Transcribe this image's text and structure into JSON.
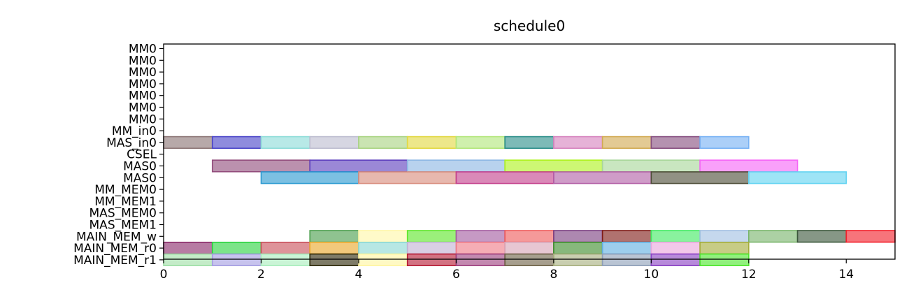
{
  "chart_data": {
    "type": "gantt",
    "title": "schedule0",
    "xlabel": "",
    "ylabel": "",
    "xlim": [
      0,
      15
    ],
    "xticks": [
      0,
      2,
      4,
      6,
      8,
      10,
      12,
      14
    ],
    "rows": [
      "MM0",
      "MM0",
      "MM0",
      "MM0",
      "MM0",
      "MM0",
      "MM0",
      "MM_in0",
      "MAS_in0",
      "CSEL",
      "MAS0",
      "MAS0",
      "MM_MEM0",
      "MM_MEM1",
      "MAS_MEM0",
      "MAS_MEM1",
      "MAIN_MEM_w",
      "MAIN_MEM_r0",
      "MAIN_MEM_r1"
    ],
    "tasks": [
      {
        "row": 8,
        "start": 0,
        "end": 1,
        "color": "#8b7575"
      },
      {
        "row": 8,
        "start": 1,
        "end": 2,
        "color": "#4b45c8"
      },
      {
        "row": 8,
        "start": 2,
        "end": 3,
        "color": "#8ddcd8"
      },
      {
        "row": 8,
        "start": 3,
        "end": 4,
        "color": "#bdbdd0"
      },
      {
        "row": 8,
        "start": 4,
        "end": 5,
        "color": "#a9d482"
      },
      {
        "row": 8,
        "start": 5,
        "end": 6,
        "color": "#e2d842"
      },
      {
        "row": 8,
        "start": 6,
        "end": 7,
        "color": "#b2e67a"
      },
      {
        "row": 8,
        "start": 7,
        "end": 8,
        "color": "#2d8f8a"
      },
      {
        "row": 8,
        "start": 8,
        "end": 9,
        "color": "#d683be"
      },
      {
        "row": 8,
        "start": 9,
        "end": 10,
        "color": "#d2aa52"
      },
      {
        "row": 8,
        "start": 10,
        "end": 11,
        "color": "#874f80"
      },
      {
        "row": 8,
        "start": 11,
        "end": 12,
        "color": "#78b2f4"
      },
      {
        "row": 10,
        "start": 1,
        "end": 3,
        "color": "#924d7c"
      },
      {
        "row": 10,
        "start": 3,
        "end": 5,
        "color": "#5e3fbd"
      },
      {
        "row": 10,
        "start": 5,
        "end": 7,
        "color": "#8db7e4"
      },
      {
        "row": 10,
        "start": 7,
        "end": 9,
        "color": "#aef21e"
      },
      {
        "row": 10,
        "start": 9,
        "end": 11,
        "color": "#a8d69a"
      },
      {
        "row": 10,
        "start": 11,
        "end": 13,
        "color": "#f665f7"
      },
      {
        "row": 11,
        "start": 2,
        "end": 4,
        "color": "#2b9ad1"
      },
      {
        "row": 11,
        "start": 4,
        "end": 6,
        "color": "#d88d7d"
      },
      {
        "row": 11,
        "start": 6,
        "end": 8,
        "color": "#c4408d"
      },
      {
        "row": 11,
        "start": 8,
        "end": 10,
        "color": "#b25fa6"
      },
      {
        "row": 11,
        "start": 10,
        "end": 12,
        "color": "#4d4d38"
      },
      {
        "row": 11,
        "start": 12,
        "end": 14,
        "color": "#62d3f1"
      },
      {
        "row": 16,
        "start": 3,
        "end": 4,
        "color": "#4a9e4c"
      },
      {
        "row": 16,
        "start": 4,
        "end": 5,
        "color": "#fff7a8"
      },
      {
        "row": 16,
        "start": 5,
        "end": 6,
        "color": "#5ee62a"
      },
      {
        "row": 16,
        "start": 6,
        "end": 7,
        "color": "#a35ba0"
      },
      {
        "row": 16,
        "start": 7,
        "end": 8,
        "color": "#ef5b5b"
      },
      {
        "row": 16,
        "start": 8,
        "end": 9,
        "color": "#7a3f80"
      },
      {
        "row": 16,
        "start": 9,
        "end": 10,
        "color": "#7f1b16"
      },
      {
        "row": 16,
        "start": 10,
        "end": 11,
        "color": "#41ea63"
      },
      {
        "row": 16,
        "start": 11,
        "end": 12,
        "color": "#a2c0e2"
      },
      {
        "row": 16,
        "start": 12,
        "end": 13,
        "color": "#79b56c"
      },
      {
        "row": 16,
        "start": 13,
        "end": 14,
        "color": "#3b573b"
      },
      {
        "row": 16,
        "start": 14,
        "end": 15,
        "color": "#f21f2a"
      },
      {
        "row": 17,
        "start": 0,
        "end": 1,
        "color": "#8a2a6a"
      },
      {
        "row": 17,
        "start": 1,
        "end": 2,
        "color": "#2bd340"
      },
      {
        "row": 17,
        "start": 2,
        "end": 3,
        "color": "#c9515b"
      },
      {
        "row": 17,
        "start": 3,
        "end": 4,
        "color": "#eaa82a"
      },
      {
        "row": 17,
        "start": 4,
        "end": 5,
        "color": "#8ad9d3"
      },
      {
        "row": 17,
        "start": 5,
        "end": 6,
        "color": "#c1b2d3"
      },
      {
        "row": 17,
        "start": 6,
        "end": 7,
        "color": "#ef7b87"
      },
      {
        "row": 17,
        "start": 7,
        "end": 8,
        "color": "#d8a5b7"
      },
      {
        "row": 17,
        "start": 8,
        "end": 9,
        "color": "#3d8c2c"
      },
      {
        "row": 17,
        "start": 9,
        "end": 10,
        "color": "#61b0e2"
      },
      {
        "row": 17,
        "start": 10,
        "end": 11,
        "color": "#eaa6dd"
      },
      {
        "row": 17,
        "start": 11,
        "end": 12,
        "color": "#a4ad3a"
      },
      {
        "row": 18,
        "start": 0,
        "end": 1,
        "color": "#9fdfa7"
      },
      {
        "row": 18,
        "start": 1,
        "end": 2,
        "color": "#a59ee2"
      },
      {
        "row": 18,
        "start": 2,
        "end": 3,
        "color": "#a9edbd"
      },
      {
        "row": 18,
        "start": 3,
        "end": 4,
        "color": "#2f2a0a"
      },
      {
        "row": 18,
        "start": 4,
        "end": 5,
        "color": "#fff5a0"
      },
      {
        "row": 18,
        "start": 5,
        "end": 6,
        "color": "#b71c36"
      },
      {
        "row": 18,
        "start": 6,
        "end": 7,
        "color": "#9e4180"
      },
      {
        "row": 18,
        "start": 7,
        "end": 8,
        "color": "#6f6247"
      },
      {
        "row": 18,
        "start": 8,
        "end": 9,
        "color": "#a8b07f"
      },
      {
        "row": 18,
        "start": 9,
        "end": 10,
        "color": "#8e9fb8"
      },
      {
        "row": 18,
        "start": 10,
        "end": 11,
        "color": "#8a42c4"
      },
      {
        "row": 18,
        "start": 11,
        "end": 12,
        "color": "#4ee62d"
      }
    ]
  }
}
